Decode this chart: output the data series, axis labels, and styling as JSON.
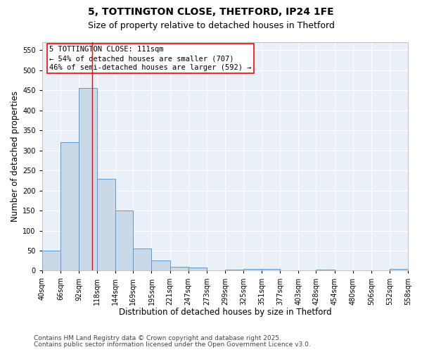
{
  "title1": "5, TOTTINGTON CLOSE, THETFORD, IP24 1FE",
  "title2": "Size of property relative to detached houses in Thetford",
  "xlabel": "Distribution of detached houses by size in Thetford",
  "ylabel": "Number of detached properties",
  "bin_edges": [
    40,
    66,
    92,
    118,
    144,
    169,
    195,
    221,
    247,
    273,
    299,
    325,
    351,
    377,
    403,
    428,
    454,
    480,
    506,
    532,
    558
  ],
  "bar_heights": [
    50,
    320,
    455,
    230,
    150,
    55,
    25,
    10,
    8,
    0,
    3,
    5,
    4,
    0,
    0,
    3,
    0,
    0,
    0,
    4
  ],
  "bar_color": "#c9d9e8",
  "bar_edgecolor": "#5b9bd5",
  "vline_x": 111,
  "vline_color": "red",
  "annotation_title": "5 TOTTINGTON CLOSE: 111sqm",
  "annotation_line2": "← 54% of detached houses are smaller (707)",
  "annotation_line3": "46% of semi-detached houses are larger (592) →",
  "annotation_box_color": "red",
  "ylim": [
    0,
    570
  ],
  "yticks": [
    0,
    50,
    100,
    150,
    200,
    250,
    300,
    350,
    400,
    450,
    500,
    550
  ],
  "bg_color": "#eaf0f8",
  "grid_color": "white",
  "footnote1": "Contains HM Land Registry data © Crown copyright and database right 2025.",
  "footnote2": "Contains public sector information licensed under the Open Government Licence v3.0.",
  "title_fontsize": 10,
  "subtitle_fontsize": 9,
  "axis_label_fontsize": 8.5,
  "tick_fontsize": 7,
  "annotation_fontsize": 7.5,
  "footnote_fontsize": 6.5
}
